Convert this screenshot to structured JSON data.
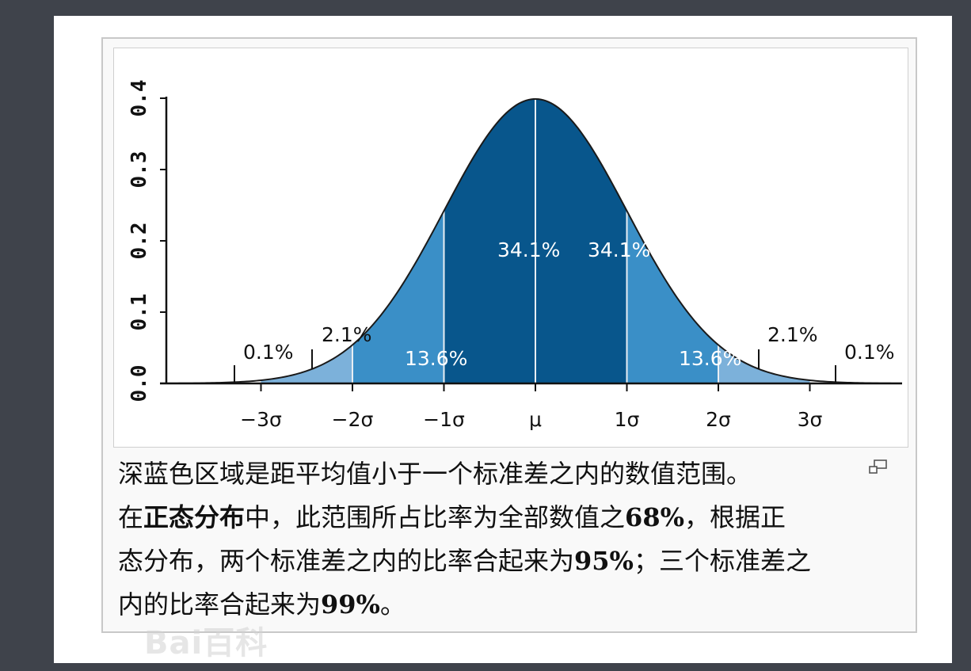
{
  "chart_data": {
    "type": "area",
    "x_ticks": [
      "−3σ",
      "−2σ",
      "−1σ",
      "μ",
      "1σ",
      "2σ",
      "3σ"
    ],
    "x_tick_values": [
      -3,
      -2,
      -1,
      0,
      1,
      2,
      3
    ],
    "y_ticks": [
      "0.0",
      "0.1",
      "0.2",
      "0.3",
      "0.4"
    ],
    "y_tick_values": [
      0,
      0.1,
      0.2,
      0.3,
      0.4
    ],
    "xlim": [
      -4,
      4
    ],
    "ylim": [
      0,
      0.4
    ],
    "distribution": {
      "name": "standard normal",
      "mean": 0,
      "sd": 1
    },
    "regions": [
      {
        "from": -4,
        "to": -3,
        "percent": "0.1%",
        "color": "#ffffff"
      },
      {
        "from": -3,
        "to": -2,
        "percent": "2.1%",
        "color": "#7cb1da"
      },
      {
        "from": -2,
        "to": -1,
        "percent": "13.6%",
        "color": "#3a8fc7"
      },
      {
        "from": -1,
        "to": 0,
        "percent": "34.1%",
        "color": "#08568c"
      },
      {
        "from": 0,
        "to": 1,
        "percent": "34.1%",
        "color": "#08568c"
      },
      {
        "from": 1,
        "to": 2,
        "percent": "13.6%",
        "color": "#3a8fc7"
      },
      {
        "from": 2,
        "to": 3,
        "percent": "2.1%",
        "color": "#7cb1da"
      },
      {
        "from": 3,
        "to": 4,
        "percent": "0.1%",
        "color": "#ffffff"
      }
    ],
    "curve_color": "#1a1a1a",
    "divider_color": "#e8eef3"
  },
  "caption": {
    "line1": "深蓝色区域是距平均值小于一个标准差之内的数值范围。",
    "line2_a": "在",
    "line2_bold": "正态分布",
    "line2_b": "中，此范围所占比率为全部数值之",
    "line2_pct": "68%",
    "line2_c": "，根据正",
    "line3_a": "态分布，两个标准差之内的比率合起来为",
    "line3_pct": "95%",
    "line3_b": "；三个标准差之",
    "line4_a": "内的比率合起来为",
    "line4_pct": "99%",
    "line4_b": "。"
  },
  "icons": {
    "enlarge": "enlarge-icon"
  },
  "watermark": "Bai百科"
}
